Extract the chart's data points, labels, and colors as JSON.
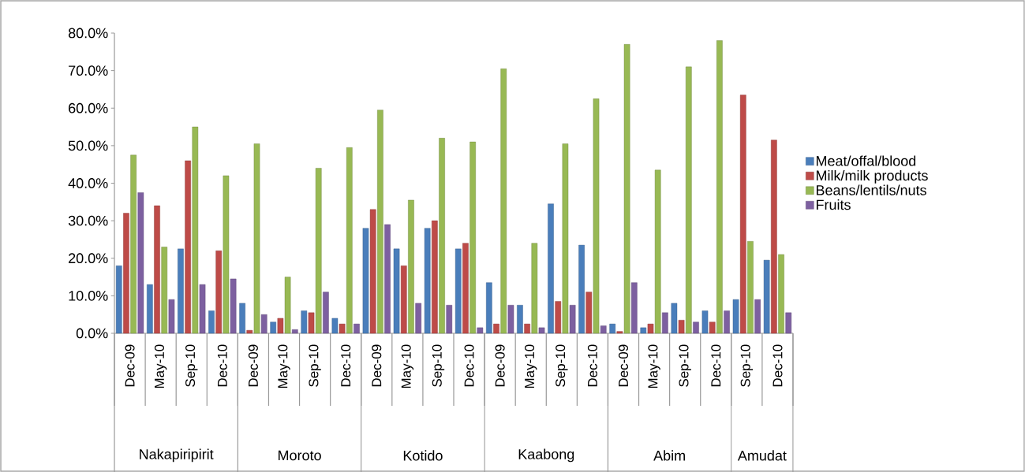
{
  "chart_data": {
    "type": "bar",
    "categories": [
      "Dec-09",
      "May-10",
      "Sep-10",
      "Dec-10",
      "Dec-09",
      "May-10",
      "Sep-10",
      "Dec-10",
      "Dec-09",
      "May-10",
      "Sep-10",
      "Dec-10",
      "Dec-09",
      "May-10",
      "Sep-10",
      "Dec-10",
      "Dec-09",
      "May-10",
      "Sep-10",
      "Dec-10",
      "Sep-10",
      "Dec-10"
    ],
    "series": [
      {
        "name": "Meat/offal/blood",
        "color": "#4a7ebb",
        "values": [
          18,
          13,
          22.5,
          6,
          8,
          3,
          6,
          4,
          28,
          22.5,
          28,
          22.5,
          13.5,
          7.5,
          34.5,
          23.5,
          2.5,
          1.5,
          8,
          6,
          9,
          19.5
        ]
      },
      {
        "name": "Milk/milk products",
        "color": "#be4b48",
        "values": [
          32,
          34,
          46,
          22,
          0.8,
          4,
          5.5,
          2.5,
          33,
          18,
          30,
          24,
          2.5,
          2.5,
          8.5,
          11,
          0.5,
          2.5,
          3.5,
          3,
          63.5,
          51.5
        ]
      },
      {
        "name": "Beans/lentils/nuts",
        "color": "#98b954",
        "values": [
          47.5,
          23,
          55,
          42,
          50.5,
          15,
          44,
          49.5,
          59.5,
          35.5,
          52,
          51,
          70.5,
          24,
          50.5,
          62.5,
          77,
          43.5,
          71,
          78,
          24.5,
          21
        ]
      },
      {
        "name": "Fruits",
        "color": "#7d60a0",
        "values": [
          37.5,
          9,
          13,
          14.5,
          5,
          1,
          11,
          2.5,
          29,
          8,
          7.5,
          1.5,
          7.5,
          1.5,
          7.5,
          2,
          13.5,
          5.5,
          3,
          6,
          9,
          5.5
        ]
      }
    ],
    "annotations": [
      "Nakapiripirit",
      "Moroto",
      "Kotido",
      "Kaabong",
      "Abim",
      "Amudat"
    ],
    "ylim": [
      0,
      80
    ],
    "yticks": [
      {
        "value": 0,
        "label": "0.0%"
      },
      {
        "value": 10,
        "label": "10.0%"
      },
      {
        "value": 20,
        "label": "20.0%"
      },
      {
        "value": 30,
        "label": "30.0%"
      },
      {
        "value": 40,
        "label": "40.0%"
      },
      {
        "value": 50,
        "label": "50.0%"
      },
      {
        "value": 60,
        "label": "60.0%"
      },
      {
        "value": 70,
        "label": "70.0%"
      },
      {
        "value": 80,
        "label": "80.0%"
      }
    ],
    "grid": false,
    "legend": "right"
  }
}
